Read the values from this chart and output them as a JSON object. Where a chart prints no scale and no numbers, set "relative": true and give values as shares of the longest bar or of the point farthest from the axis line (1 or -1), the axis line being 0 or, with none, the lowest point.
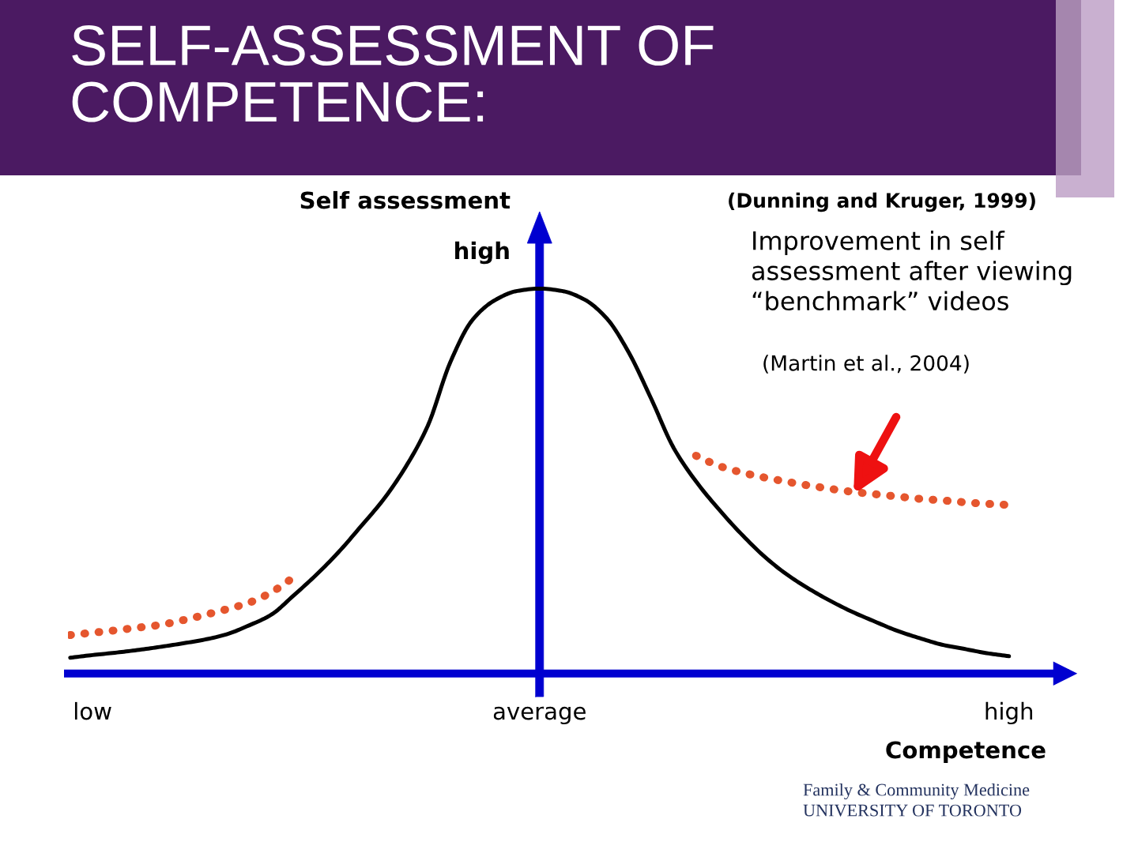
{
  "chart_data": {
    "type": "line",
    "title": "SELF-ASSESSMENT OF COMPETENCE:",
    "xlabel": "Competence",
    "ylabel": "Self assessment",
    "relative": true,
    "categories": [
      null,
      "low",
      null,
      null,
      null,
      null,
      null,
      null,
      null,
      null,
      null,
      null,
      null,
      null,
      null,
      null,
      null,
      null,
      null,
      null,
      null,
      "average",
      null,
      null,
      null,
      null,
      null,
      null,
      null,
      null,
      null,
      null,
      null,
      null,
      null,
      null,
      null,
      null,
      null,
      null,
      null,
      null,
      "high"
    ],
    "series": [
      {
        "color": "#000000",
        "line_style": "solid",
        "values": [
          0.041,
          0.048,
          0.054,
          0.061,
          0.069,
          0.078,
          0.088,
          0.102,
          0.125,
          0.153,
          0.203,
          0.256,
          0.315,
          0.382,
          0.451,
          0.536,
          0.644,
          0.808,
          0.919,
          0.97,
          0.994,
          1,
          0.994,
          0.972,
          0.923,
          0.833,
          0.713,
          0.586,
          0.499,
          0.428,
          0.364,
          0.307,
          0.26,
          0.222,
          0.189,
          0.16,
          0.135,
          0.111,
          0.092,
          0.075,
          0.064,
          0.053,
          0.045
        ]
      },
      {
        "color": "#e5562e",
        "line_style": "dotted",
        "values": [
          0.1,
          0.106,
          0.112,
          0.119,
          0.126,
          0.138,
          0.152,
          0.167,
          0.184,
          0.211,
          0.25,
          null,
          null,
          null,
          null,
          null,
          null,
          null,
          null,
          null,
          null,
          null,
          null,
          null,
          null,
          null,
          null,
          null,
          null,
          null,
          null,
          null,
          null,
          null,
          null,
          null,
          null,
          null,
          null,
          null,
          null,
          null,
          null
        ]
      },
      {
        "color": "#e5562e",
        "line_style": "dotted",
        "values": [
          null,
          null,
          null,
          null,
          null,
          null,
          null,
          null,
          null,
          null,
          null,
          null,
          null,
          null,
          null,
          null,
          null,
          null,
          null,
          null,
          null,
          null,
          null,
          null,
          null,
          null,
          null,
          null,
          0.566,
          0.54,
          0.523,
          0.51,
          0.499,
          0.489,
          0.48,
          0.472,
          0.466,
          0.46,
          0.454,
          0.45,
          0.445,
          0.441,
          0.438
        ]
      }
    ],
    "annotations": [
      "high",
      "(Dunning and Kruger, 1999)",
      "Improvement in self assessment after viewing “benchmark” videos",
      "(Martin et al., 2004)",
      "Family & Community Medicine",
      "UNIVERSITY OF TORONTO"
    ]
  }
}
